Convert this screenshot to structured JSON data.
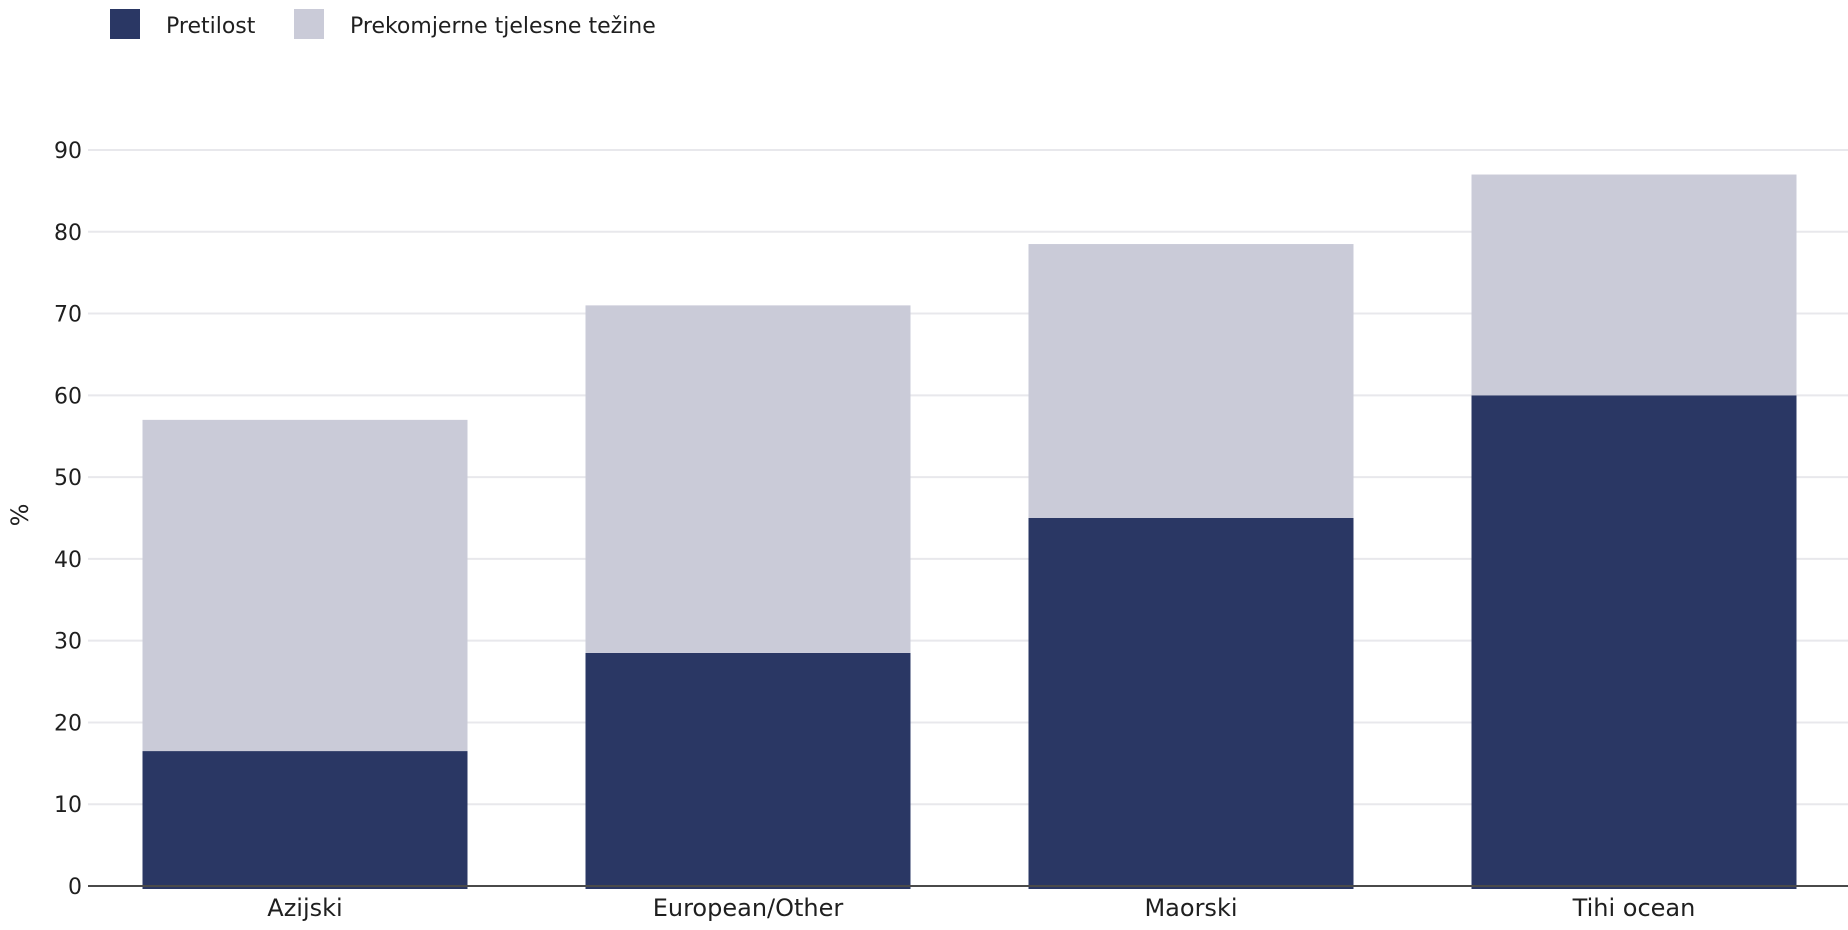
{
  "chart_data": {
    "type": "bar",
    "stacked": true,
    "categories": [
      "Azijski",
      "European/Other",
      "Maorski",
      "Tihi ocean"
    ],
    "series": [
      {
        "name": "Pretilost",
        "values": [
          16.5,
          28.5,
          45,
          60
        ],
        "color": "#2a3764"
      },
      {
        "name": "Prekomjerne tjelesne težine",
        "values": [
          40.5,
          42.5,
          33.5,
          27
        ],
        "color": "#cacbd8"
      }
    ],
    "ylabel": "%",
    "ylim": [
      0,
      90
    ],
    "yticks": [
      0,
      10,
      20,
      30,
      40,
      50,
      60,
      70,
      80,
      90
    ],
    "grid": true,
    "legend_position": "top-left"
  }
}
